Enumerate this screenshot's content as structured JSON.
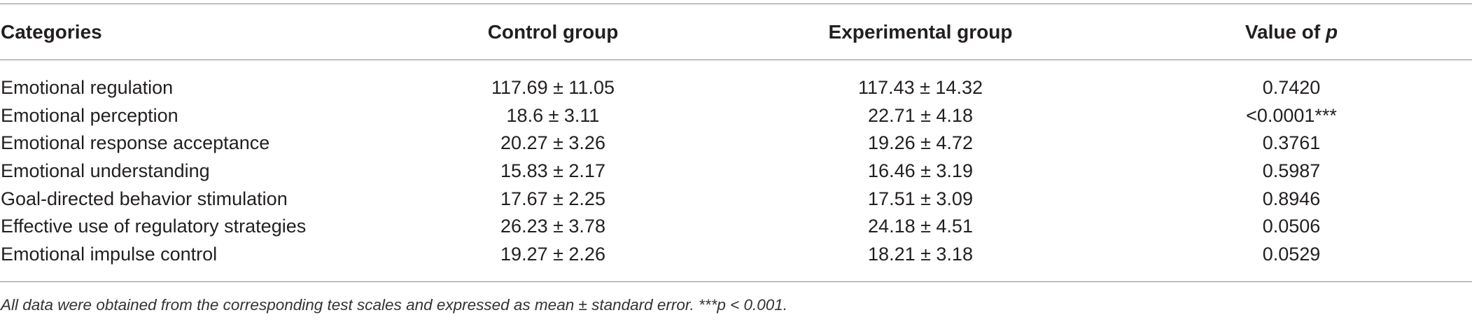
{
  "table": {
    "headers": {
      "categories": "Categories",
      "control": "Control group",
      "experimental": "Experimental group",
      "p_value_prefix": "Value of ",
      "p_value_symbol": "p"
    },
    "rows": [
      {
        "category": "Emotional regulation",
        "control": "117.69 ± 11.05",
        "experimental": "117.43 ± 14.32",
        "p": "0.7420"
      },
      {
        "category": "Emotional perception",
        "control": "18.6 ± 3.11",
        "experimental": "22.71 ± 4.18",
        "p": "<0.0001***"
      },
      {
        "category": "Emotional response acceptance",
        "control": "20.27 ± 3.26",
        "experimental": "19.26 ± 4.72",
        "p": "0.3761"
      },
      {
        "category": "Emotional understanding",
        "control": "15.83 ± 2.17",
        "experimental": "16.46 ± 3.19",
        "p": "0.5987"
      },
      {
        "category": "Goal-directed behavior stimulation",
        "control": "17.67 ± 2.25",
        "experimental": "17.51 ± 3.09",
        "p": "0.8946"
      },
      {
        "category": "Effective use of regulatory strategies",
        "control": "26.23 ± 3.78",
        "experimental": "24.18 ± 4.51",
        "p": "0.0506"
      },
      {
        "category": "Emotional impulse control",
        "control": "19.27 ± 2.26",
        "experimental": "18.21 ± 3.18",
        "p": "0.0529"
      }
    ],
    "footnote": "All data were obtained from the corresponding test scales and expressed as mean ± standard error. ***p < 0.001."
  }
}
